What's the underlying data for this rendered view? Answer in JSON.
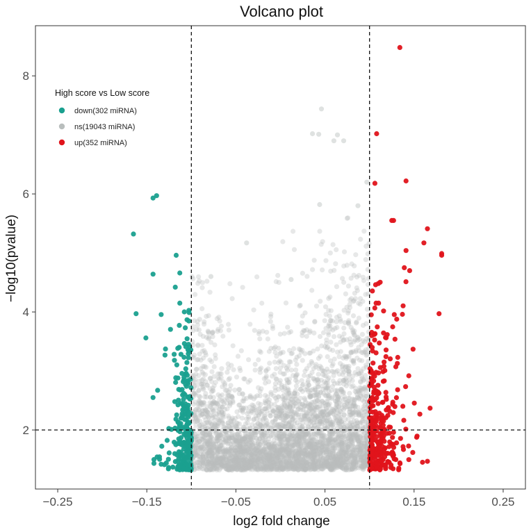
{
  "chart_data": {
    "type": "scatter",
    "title": "Volcano plot",
    "xlabel": "log2 fold change",
    "ylabel": "−log10(pvalue)",
    "xlim": [
      -0.275,
      0.275
    ],
    "ylim": [
      1.0,
      8.85
    ],
    "x_ticks": [
      -0.25,
      -0.15,
      -0.05,
      0.05,
      0.15,
      0.25
    ],
    "x_tick_labels": [
      "−0.25",
      "−0.15",
      "−0.05",
      "0.05",
      "0.15",
      "0.25"
    ],
    "y_ticks": [
      2,
      4,
      6,
      8
    ],
    "y_tick_labels": [
      "2",
      "4",
      "6",
      "8"
    ],
    "thresholds": {
      "x": [
        -0.1,
        0.1
      ],
      "y": 2
    },
    "legend": {
      "title": "High score vs Low score",
      "position": "top-left",
      "entries": [
        {
          "key": "down",
          "label": "down(302 miRNA)",
          "color": "#1aa08f"
        },
        {
          "key": "ns",
          "label": "ns(19043 miRNA)",
          "color": "#b9bebd"
        },
        {
          "key": "up",
          "label": "up(352 miRNA)",
          "color": "#e0141b"
        }
      ]
    },
    "series": [
      {
        "name": "down(302 miRNA)",
        "color": "#1aa08f",
        "highlighted_points": [
          [
            -0.139,
            5.97
          ],
          [
            -0.143,
            5.93
          ],
          [
            -0.165,
            5.32
          ],
          [
            -0.117,
            4.96
          ],
          [
            -0.143,
            4.64
          ],
          [
            -0.113,
            4.66
          ],
          [
            -0.118,
            4.42
          ],
          [
            -0.162,
            3.97
          ],
          [
            -0.113,
            4.15
          ],
          [
            -0.151,
            3.56
          ],
          [
            -0.143,
            2.55
          ]
        ]
      },
      {
        "name": "ns(19043 miRNA)",
        "color": "#b9bebd",
        "highlighted_points": [
          [
            0.046,
            7.44
          ],
          [
            0.036,
            7.02
          ],
          [
            0.043,
            7.01
          ],
          [
            0.064,
            7.0
          ],
          [
            0.06,
            6.9
          ],
          [
            0.071,
            6.9
          ],
          [
            0.044,
            5.82
          ],
          [
            0.087,
            5.8
          ],
          [
            0.097,
            6.2
          ],
          [
            -0.038,
            5.17
          ],
          [
            -0.078,
            4.6
          ],
          [
            0.012,
            4.55
          ]
        ]
      },
      {
        "name": "up(352 miRNA)",
        "color": "#e0141b",
        "highlighted_points": [
          [
            0.134,
            8.48
          ],
          [
            0.108,
            7.02
          ],
          [
            0.106,
            6.18
          ],
          [
            0.141,
            6.22
          ],
          [
            0.125,
            5.55
          ],
          [
            0.127,
            5.55
          ],
          [
            0.165,
            5.41
          ],
          [
            0.161,
            5.17
          ],
          [
            0.181,
            4.99
          ],
          [
            0.181,
            4.96
          ],
          [
            0.141,
            5.04
          ],
          [
            0.139,
            4.75
          ],
          [
            0.145,
            4.7
          ],
          [
            0.178,
            3.97
          ],
          [
            0.168,
            2.37
          ],
          [
            0.165,
            1.47
          ]
        ]
      }
    ]
  }
}
